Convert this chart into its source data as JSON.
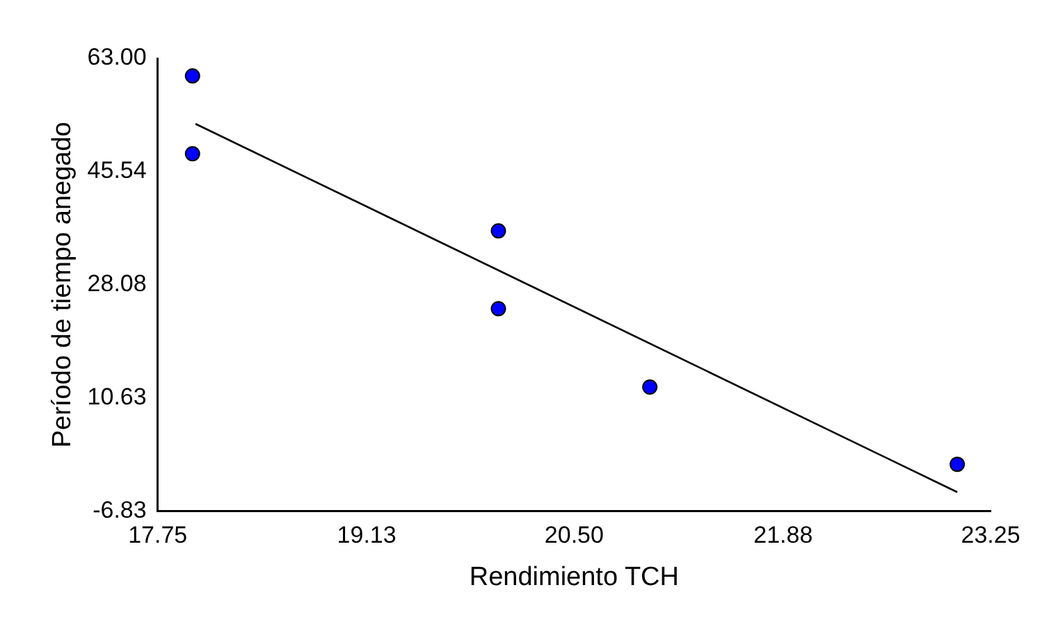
{
  "chart_data": {
    "type": "scatter",
    "xlabel": "Rendimiento TCH",
    "ylabel": "Período de tiempo anegado",
    "xlim": [
      17.75,
      23.25
    ],
    "ylim": [
      -6.83,
      63
    ],
    "xticks": [
      {
        "value": 17.75,
        "label": "17.75"
      },
      {
        "value": 19.13,
        "label": "19.13"
      },
      {
        "value": 20.5,
        "label": "20.50"
      },
      {
        "value": 21.88,
        "label": "21.88"
      },
      {
        "value": 23.25,
        "label": "23.25"
      }
    ],
    "yticks": [
      {
        "value": -6.83,
        "label": "-6.83"
      },
      {
        "value": 10.63,
        "label": "10.63"
      },
      {
        "value": 28.08,
        "label": "28.08"
      },
      {
        "value": 45.54,
        "label": "45.54"
      },
      {
        "value": 63,
        "label": "63.00"
      }
    ],
    "grid": false,
    "legend": false,
    "marker": "circle",
    "series": [
      {
        "type": "scatter",
        "color": "#0000ff",
        "x": [
          17.98,
          17.98,
          20.0,
          20.0,
          21.0,
          23.03
        ],
        "values": [
          60.3,
          48.3,
          36.4,
          24.4,
          12.3,
          0.4
        ]
      },
      {
        "type": "line",
        "color": "#000000",
        "x": [
          18.0,
          23.03
        ],
        "values": [
          52.9,
          -3.9
        ],
        "marker": "none"
      }
    ]
  }
}
